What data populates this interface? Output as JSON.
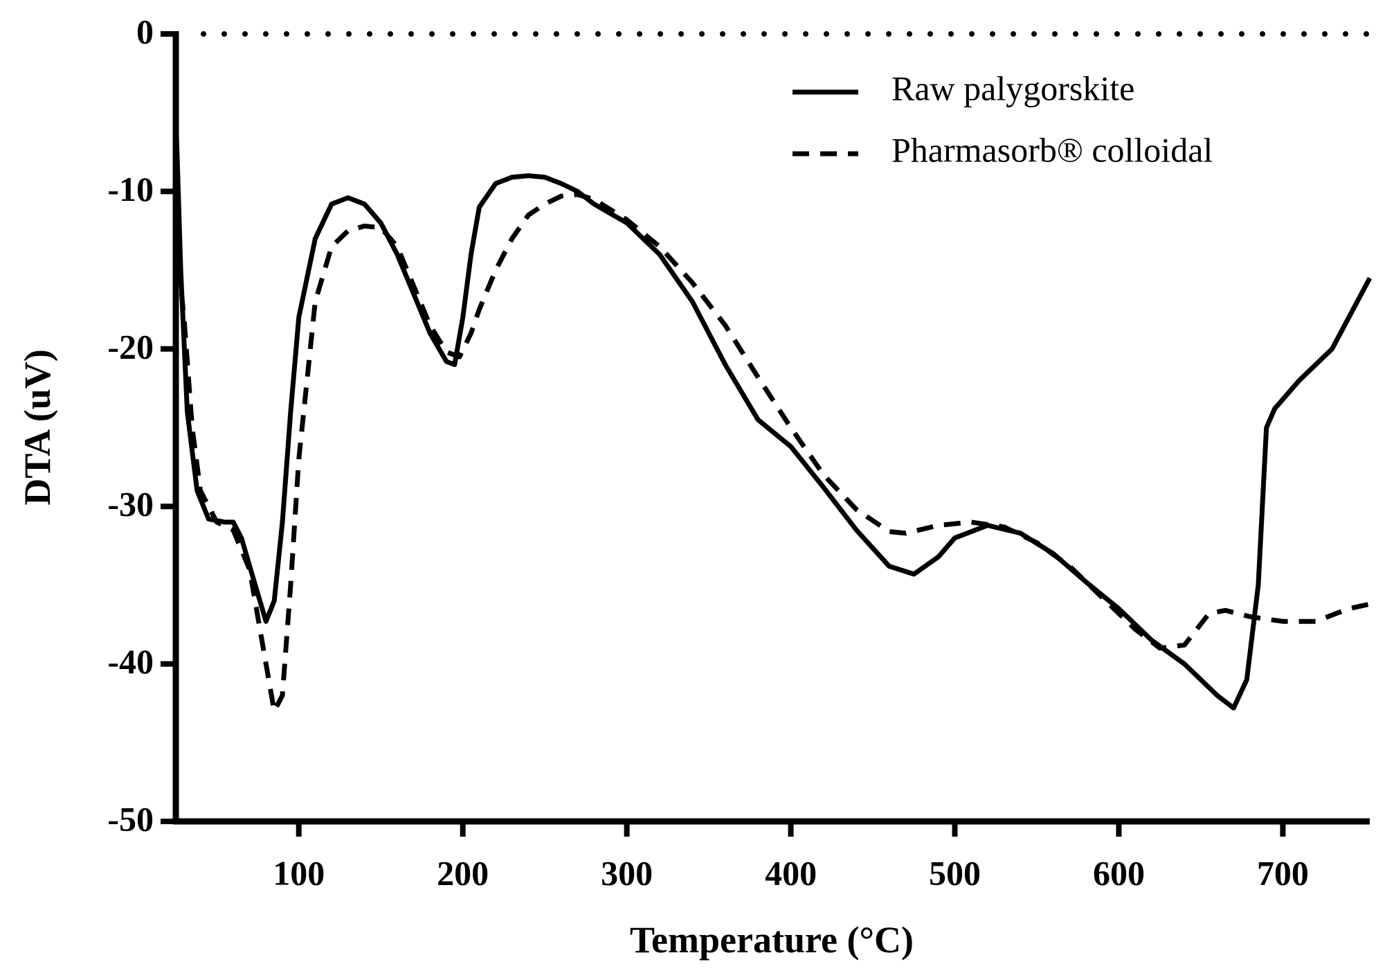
{
  "chart_data": {
    "type": "line",
    "xlabel": "Temperature (°C)",
    "ylabel": "DTA (uV)",
    "xlim": [
      25,
      753
    ],
    "ylim": [
      -50,
      0
    ],
    "xticks": [
      100,
      200,
      300,
      400,
      500,
      600,
      700
    ],
    "yticks": [
      0,
      -10,
      -20,
      -30,
      -40,
      -50
    ],
    "hline": 0,
    "legend": "upper right",
    "series": [
      {
        "name": "Raw palygorskite",
        "color": "#000000",
        "dash": "solid",
        "x": [
          25,
          28,
          32,
          38,
          45,
          55,
          60,
          65,
          72,
          80,
          85,
          90,
          95,
          100,
          110,
          120,
          130,
          140,
          150,
          160,
          170,
          180,
          190,
          195,
          200,
          205,
          210,
          220,
          230,
          240,
          250,
          260,
          270,
          280,
          300,
          320,
          340,
          360,
          380,
          400,
          420,
          440,
          460,
          475,
          490,
          500,
          520,
          540,
          560,
          580,
          600,
          620,
          640,
          660,
          670,
          678,
          685,
          690,
          695,
          710,
          730,
          753
        ],
        "values": [
          -5,
          -15,
          -24,
          -29,
          -30.8,
          -31,
          -31,
          -32,
          -34.5,
          -37.3,
          -36,
          -31,
          -24,
          -18,
          -13,
          -10.8,
          -10.4,
          -10.8,
          -12,
          -14,
          -16.5,
          -19,
          -20.8,
          -21,
          -18,
          -14,
          -11,
          -9.5,
          -9.1,
          -9,
          -9.1,
          -9.5,
          -10,
          -10.8,
          -12,
          -14,
          -17,
          -21,
          -24.5,
          -26.2,
          -28.8,
          -31.5,
          -33.8,
          -34.3,
          -33.2,
          -32,
          -31.2,
          -31.7,
          -33,
          -34.8,
          -36.5,
          -38.5,
          -40,
          -42,
          -42.8,
          -41,
          -35,
          -25,
          -23.8,
          -22,
          -20,
          -15.5
        ]
      },
      {
        "name": "Pharmasorb® colloidal",
        "color": "#000000",
        "dash": "dashed",
        "x": [
          25,
          30,
          35,
          40,
          50,
          60,
          70,
          80,
          85,
          90,
          95,
          100,
          110,
          120,
          130,
          140,
          150,
          160,
          170,
          180,
          190,
          198,
          205,
          210,
          220,
          230,
          240,
          250,
          260,
          270,
          280,
          300,
          320,
          340,
          360,
          380,
          400,
          420,
          440,
          460,
          470,
          490,
          510,
          530,
          550,
          570,
          590,
          610,
          625,
          640,
          655,
          665,
          680,
          700,
          720,
          740,
          753
        ],
        "values": [
          -13,
          -18,
          -25,
          -29,
          -31,
          -31.5,
          -34,
          -40,
          -43,
          -42,
          -35,
          -27,
          -17,
          -13.5,
          -12.5,
          -12.2,
          -12.3,
          -13.5,
          -16,
          -18.5,
          -20.2,
          -20.5,
          -19,
          -17.5,
          -15,
          -13,
          -11.5,
          -10.8,
          -10.3,
          -10.2,
          -10.5,
          -11.8,
          -13.5,
          -15.8,
          -18.5,
          -21.8,
          -25,
          -28,
          -30.2,
          -31.6,
          -31.7,
          -31.2,
          -31,
          -31.3,
          -32.3,
          -33.8,
          -35.8,
          -37.8,
          -39,
          -38.8,
          -36.8,
          -36.6,
          -37,
          -37.3,
          -37.3,
          -36.5,
          -36.2
        ]
      }
    ]
  }
}
